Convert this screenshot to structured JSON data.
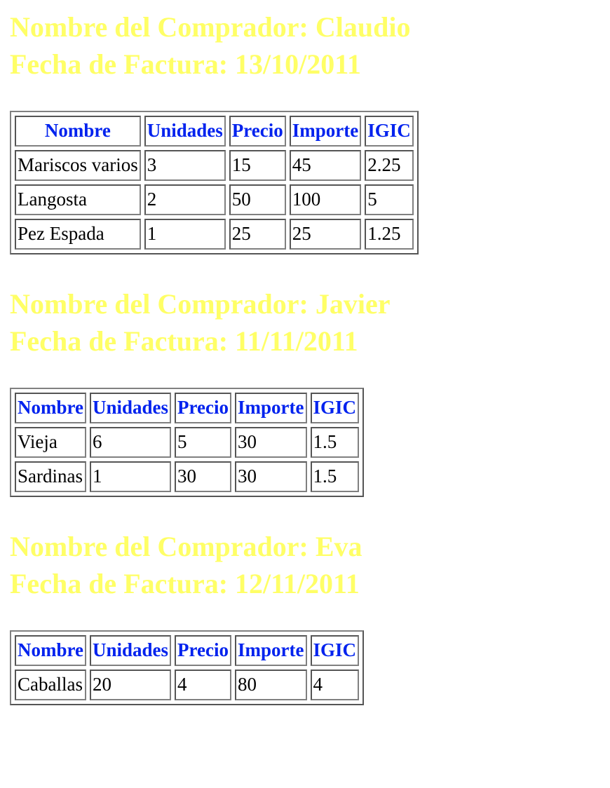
{
  "colors": {
    "heading": "#ffff66",
    "column_header": "#0022ee",
    "cell_text": "#000000"
  },
  "invoices": [
    {
      "buyer_line": "Nombre del Comprador: Claudio",
      "date_line": "Fecha de Factura: 13/10/2011",
      "columns": [
        "Nombre",
        "Unidades",
        "Precio",
        "Importe",
        "IGIC"
      ],
      "rows": [
        [
          "Mariscos varios",
          "3",
          "15",
          "45",
          "2.25"
        ],
        [
          "Langosta",
          "2",
          "50",
          "100",
          "5"
        ],
        [
          "Pez Espada",
          "1",
          "25",
          "25",
          "1.25"
        ]
      ]
    },
    {
      "buyer_line": "Nombre del Comprador: Javier",
      "date_line": "Fecha de Factura: 11/11/2011",
      "columns": [
        "Nombre",
        "Unidades",
        "Precio",
        "Importe",
        "IGIC"
      ],
      "rows": [
        [
          "Vieja",
          "6",
          "5",
          "30",
          "1.5"
        ],
        [
          "Sardinas",
          "1",
          "30",
          "30",
          "1.5"
        ]
      ]
    },
    {
      "buyer_line": "Nombre del Comprador: Eva",
      "date_line": "Fecha de Factura: 12/11/2011",
      "columns": [
        "Nombre",
        "Unidades",
        "Precio",
        "Importe",
        "IGIC"
      ],
      "rows": [
        [
          "Caballas",
          "20",
          "4",
          "80",
          "4"
        ]
      ]
    }
  ]
}
